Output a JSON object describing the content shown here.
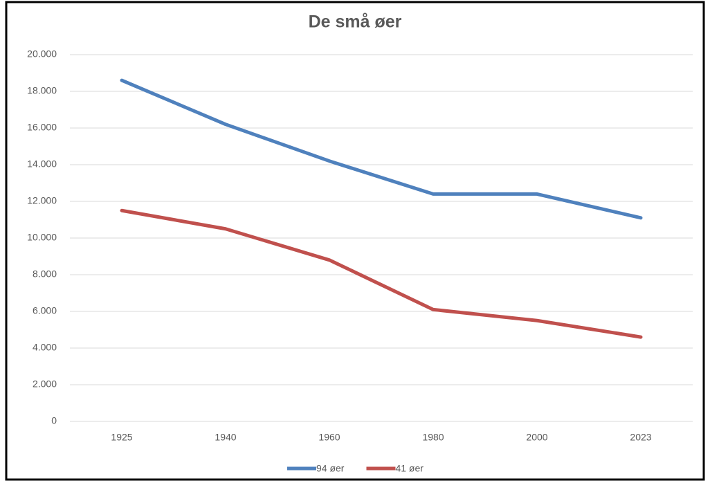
{
  "chart_data": {
    "type": "line",
    "title": "De små øer",
    "categories": [
      "1925",
      "1940",
      "1960",
      "1980",
      "2000",
      "2023"
    ],
    "series": [
      {
        "name": "94 øer",
        "color": "#4f81bd",
        "values": [
          18600,
          16200,
          14200,
          12400,
          12400,
          11100
        ]
      },
      {
        "name": "41 øer",
        "color": "#c0504d",
        "values": [
          11500,
          10500,
          8800,
          6100,
          5500,
          4600
        ]
      }
    ],
    "ylim": [
      0,
      20000
    ],
    "yticks": [
      0,
      {
        "value": 2000,
        "label": "2.000"
      },
      {
        "value": 4000,
        "label": "4.000"
      },
      {
        "value": 6000,
        "label": "6.000"
      },
      {
        "value": 8000,
        "label": "8.000"
      },
      {
        "value": 10000,
        "label": "10.000"
      },
      {
        "value": 12000,
        "label": "12.000"
      },
      {
        "value": 14000,
        "label": "14.000"
      },
      {
        "value": 16000,
        "label": "16.000"
      },
      {
        "value": 18000,
        "label": "18.000"
      },
      {
        "value": 20000,
        "label": "20.000"
      }
    ],
    "grid": true,
    "legend": "bottom"
  }
}
